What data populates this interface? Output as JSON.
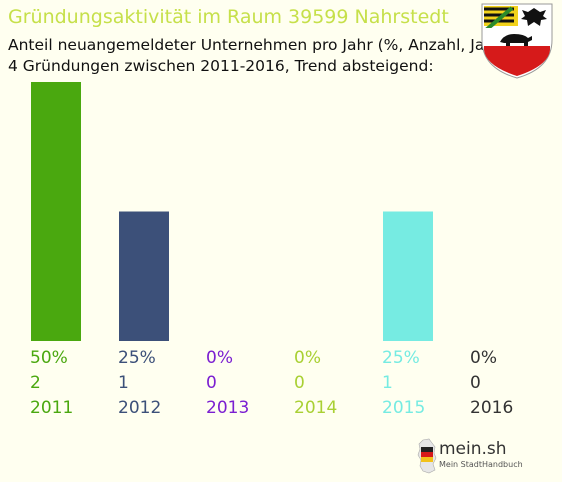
{
  "header": {
    "title": "Gründungsaktivität im Raum 39599 Nahrstedt",
    "subtitle_line1": "Anteil neuangemeldeter Unternehmen pro Jahr (%, Anzahl, Jahr)",
    "subtitle_line2": "4 Gründungen zwischen 2011-2016, Trend absteigend:",
    "title_color": "#c6e04a"
  },
  "chart_data": {
    "type": "bar",
    "categories": [
      "2011",
      "2012",
      "2013",
      "2014",
      "2015",
      "2016"
    ],
    "values": [
      2,
      1,
      0,
      0,
      1,
      0
    ],
    "percent_labels": [
      "50%",
      "25%",
      "0%",
      "0%",
      "25%",
      "0%"
    ],
    "count_labels": [
      "2",
      "1",
      "0",
      "0",
      "1",
      "0"
    ],
    "colors": [
      "#4aa80f",
      "#3c5079",
      "#7b1fd1",
      "#a9d033",
      "#76ebe2",
      "#333333"
    ],
    "ylim": [
      0,
      2
    ],
    "grid": false,
    "legend": "none"
  },
  "logo": {
    "main": "mein.sh",
    "sub": "Mein StadtHandbuch"
  },
  "icons": {
    "crest": "saxony-anhalt-coat-of-arms-icon",
    "logo_map": "germany-map-icon"
  }
}
